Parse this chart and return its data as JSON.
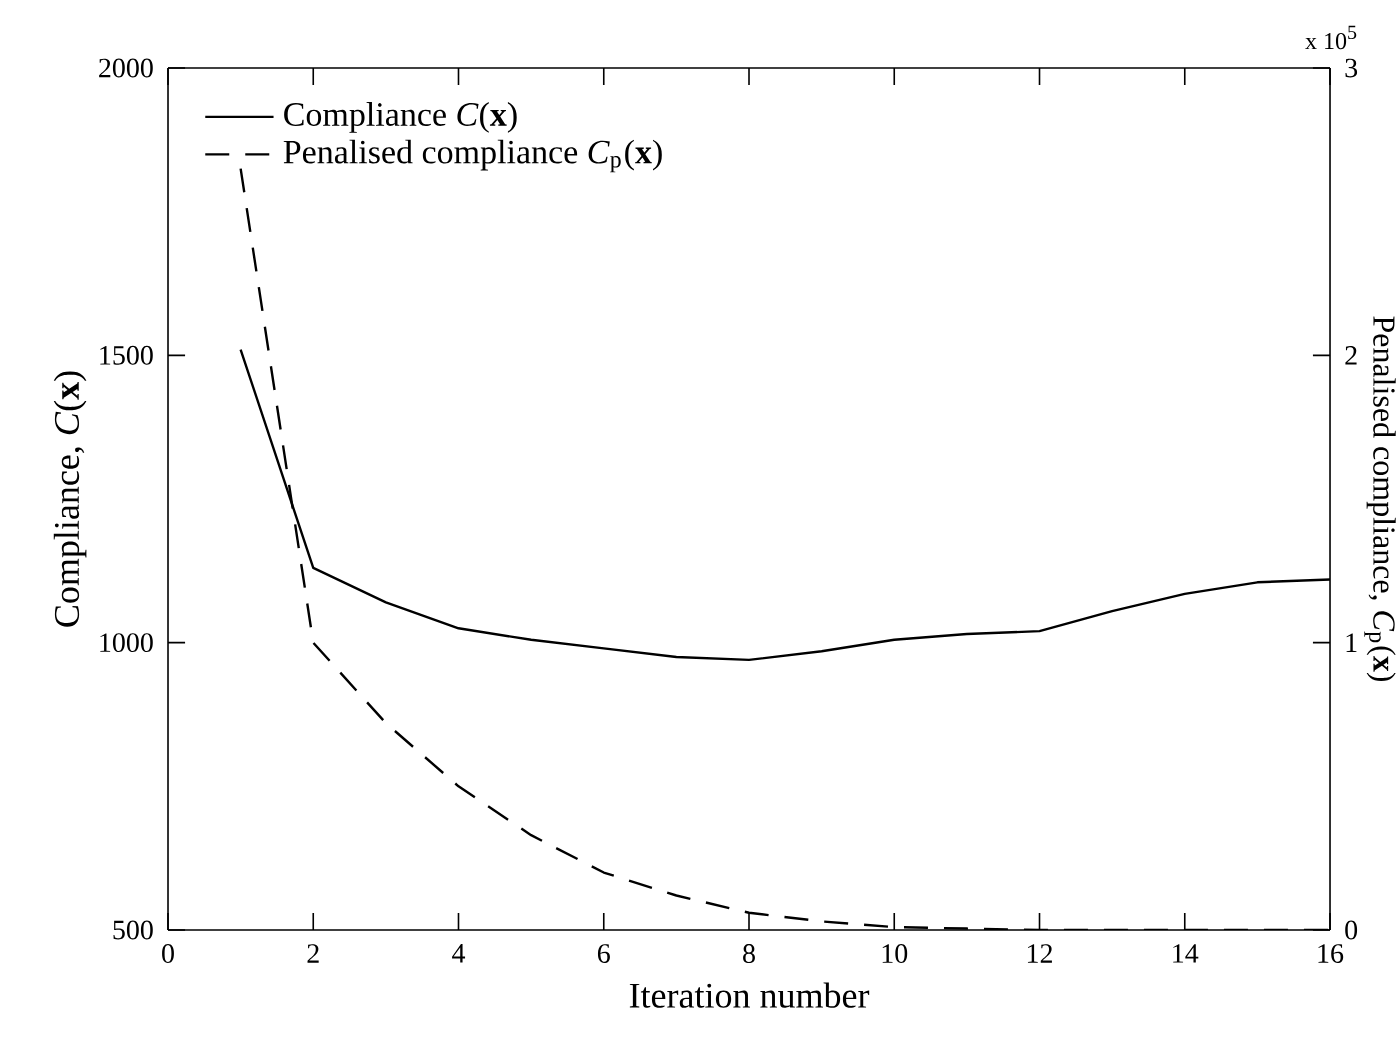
{
  "chart_data": {
    "type": "line",
    "xlabel": "Iteration number",
    "ylabel": "Compliance, *C*(**x**)",
    "y2label": "Penalised compliance, *C*$_{p}$(**x**)",
    "x": [
      1,
      2,
      3,
      4,
      5,
      6,
      7,
      8,
      9,
      10,
      11,
      12,
      13,
      14,
      15,
      16
    ],
    "series": [
      {
        "name": "Compliance *C*(**x**)",
        "color": "#000000",
        "line_style": "solid",
        "values": [
          1510,
          1130,
          1070,
          1025,
          1005,
          990,
          975,
          970,
          985,
          1005,
          1015,
          1020,
          1055,
          1085,
          1105,
          1110
        ]
      },
      {
        "name": "Penalised compliance *C*$_{p}$(**x**)",
        "color": "#000000",
        "line_style": "dashed",
        "axis": "y2",
        "values": [
          2.65,
          1.0,
          0.72,
          0.5,
          0.33,
          0.2,
          0.12,
          0.06,
          0.03,
          0.01,
          0.005,
          0,
          0,
          0,
          0,
          0
        ]
      }
    ],
    "xlim": [
      0,
      16
    ],
    "xticks": [
      0,
      2,
      4,
      6,
      8,
      10,
      12,
      14,
      16
    ],
    "ylim": [
      500,
      2000
    ],
    "yticks": [
      500,
      1000,
      1500,
      2000
    ],
    "y2lim": [
      0,
      3
    ],
    "y2ticks": [
      0,
      1,
      2,
      3
    ],
    "annotations": [
      "x 10$^{5}$"
    ],
    "legend": "top left",
    "grid": false,
    "marker": "none"
  }
}
